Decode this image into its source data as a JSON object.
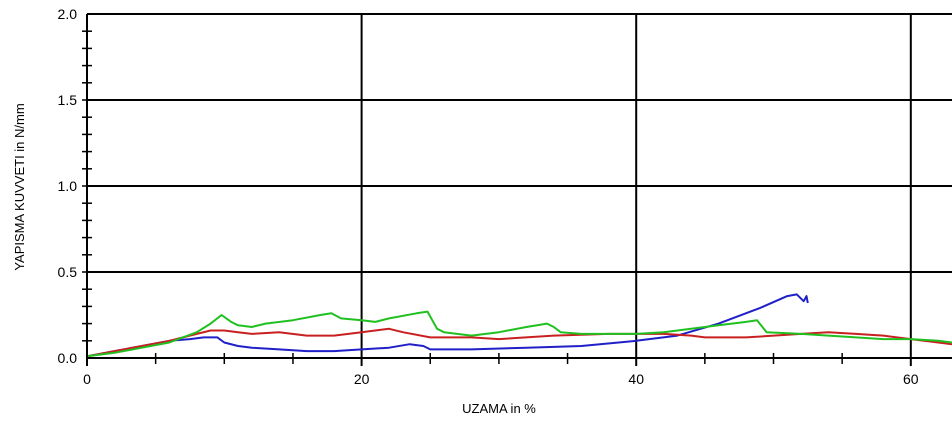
{
  "chart_data": {
    "type": "line",
    "title": "",
    "xlabel": "UZAMA in %",
    "ylabel": "YAPISMA KUVVETI in N/mm",
    "xlim": [
      0,
      63
    ],
    "ylim": [
      0,
      2.0
    ],
    "x_ticks": [
      0,
      20,
      40,
      60
    ],
    "x_tick_labels": [
      "0",
      "20",
      "40",
      "60"
    ],
    "y_ticks": [
      0,
      0.5,
      1.0,
      1.5,
      2.0
    ],
    "y_tick_labels": [
      "0.0",
      "0.5",
      "1.0",
      "1.5",
      "2.0"
    ],
    "grid": true,
    "legend": "none",
    "series": [
      {
        "color": "#2020c8",
        "points": [
          [
            0,
            0.01
          ],
          [
            2,
            0.04
          ],
          [
            4,
            0.07
          ],
          [
            6,
            0.1
          ],
          [
            7.5,
            0.11
          ],
          [
            8.5,
            0.12
          ],
          [
            9.5,
            0.12
          ],
          [
            10,
            0.09
          ],
          [
            11,
            0.07
          ],
          [
            12,
            0.06
          ],
          [
            14,
            0.05
          ],
          [
            16,
            0.04
          ],
          [
            18,
            0.04
          ],
          [
            20,
            0.05
          ],
          [
            22,
            0.06
          ],
          [
            23.5,
            0.08
          ],
          [
            24.5,
            0.07
          ],
          [
            25,
            0.05
          ],
          [
            28,
            0.05
          ],
          [
            32,
            0.06
          ],
          [
            36,
            0.07
          ],
          [
            40,
            0.1
          ],
          [
            43,
            0.13
          ],
          [
            46,
            0.2
          ],
          [
            49,
            0.29
          ],
          [
            51,
            0.36
          ],
          [
            51.7,
            0.37
          ],
          [
            52.2,
            0.33
          ],
          [
            52.4,
            0.36
          ],
          [
            52.5,
            0.32
          ]
        ]
      },
      {
        "color": "#c82020",
        "points": [
          [
            0,
            0.01
          ],
          [
            2,
            0.04
          ],
          [
            4,
            0.07
          ],
          [
            6,
            0.1
          ],
          [
            8,
            0.14
          ],
          [
            9,
            0.16
          ],
          [
            10,
            0.16
          ],
          [
            11,
            0.15
          ],
          [
            12,
            0.14
          ],
          [
            14,
            0.15
          ],
          [
            16,
            0.13
          ],
          [
            18,
            0.13
          ],
          [
            20,
            0.15
          ],
          [
            22,
            0.17
          ],
          [
            23,
            0.15
          ],
          [
            25,
            0.12
          ],
          [
            28,
            0.12
          ],
          [
            30,
            0.11
          ],
          [
            34,
            0.13
          ],
          [
            38,
            0.14
          ],
          [
            42,
            0.14
          ],
          [
            44,
            0.13
          ],
          [
            45,
            0.12
          ],
          [
            48,
            0.12
          ],
          [
            52,
            0.14
          ],
          [
            54,
            0.15
          ],
          [
            56,
            0.14
          ],
          [
            58,
            0.13
          ],
          [
            60,
            0.11
          ],
          [
            62,
            0.09
          ],
          [
            63,
            0.08
          ]
        ]
      },
      {
        "color": "#20c020",
        "points": [
          [
            0,
            0.01
          ],
          [
            2,
            0.03
          ],
          [
            4,
            0.06
          ],
          [
            6,
            0.09
          ],
          [
            8,
            0.15
          ],
          [
            9,
            0.2
          ],
          [
            9.8,
            0.25
          ],
          [
            10.5,
            0.21
          ],
          [
            11,
            0.19
          ],
          [
            12,
            0.18
          ],
          [
            13,
            0.2
          ],
          [
            15,
            0.22
          ],
          [
            17,
            0.25
          ],
          [
            17.8,
            0.26
          ],
          [
            18.5,
            0.23
          ],
          [
            20,
            0.22
          ],
          [
            21,
            0.21
          ],
          [
            22,
            0.23
          ],
          [
            24,
            0.26
          ],
          [
            24.8,
            0.27
          ],
          [
            25.5,
            0.17
          ],
          [
            26,
            0.15
          ],
          [
            28,
            0.13
          ],
          [
            30,
            0.15
          ],
          [
            32,
            0.18
          ],
          [
            33.5,
            0.2
          ],
          [
            34,
            0.18
          ],
          [
            34.5,
            0.15
          ],
          [
            36,
            0.14
          ],
          [
            40,
            0.14
          ],
          [
            42,
            0.15
          ],
          [
            44,
            0.17
          ],
          [
            46,
            0.19
          ],
          [
            48,
            0.21
          ],
          [
            48.8,
            0.22
          ],
          [
            49.5,
            0.15
          ],
          [
            52,
            0.14
          ],
          [
            54,
            0.13
          ],
          [
            56,
            0.12
          ],
          [
            58,
            0.11
          ],
          [
            60,
            0.11
          ],
          [
            62,
            0.1
          ],
          [
            63,
            0.09
          ]
        ]
      }
    ]
  }
}
